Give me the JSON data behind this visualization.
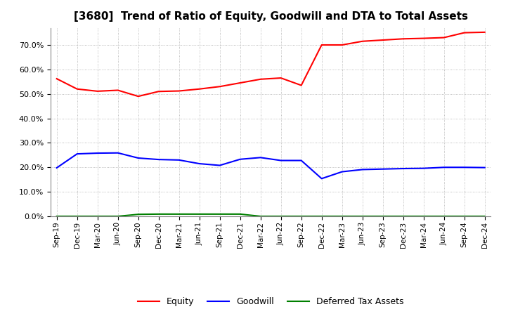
{
  "title": "[3680]  Trend of Ratio of Equity, Goodwill and DTA to Total Assets",
  "x_labels": [
    "Sep-19",
    "Dec-19",
    "Mar-20",
    "Jun-20",
    "Sep-20",
    "Dec-20",
    "Mar-21",
    "Jun-21",
    "Sep-21",
    "Dec-21",
    "Mar-22",
    "Jun-22",
    "Sep-22",
    "Dec-22",
    "Mar-23",
    "Jun-23",
    "Sep-23",
    "Dec-23",
    "Mar-24",
    "Jun-24",
    "Sep-24",
    "Dec-24"
  ],
  "equity": [
    0.562,
    0.52,
    0.511,
    0.515,
    0.49,
    0.51,
    0.512,
    0.52,
    0.53,
    0.545,
    0.56,
    0.565,
    0.535,
    0.7,
    0.7,
    0.715,
    0.72,
    0.725,
    0.727,
    0.73,
    0.75,
    0.752
  ],
  "goodwill": [
    0.198,
    0.255,
    0.258,
    0.259,
    0.238,
    0.232,
    0.23,
    0.215,
    0.208,
    0.233,
    0.24,
    0.228,
    0.228,
    0.154,
    0.182,
    0.191,
    0.193,
    0.195,
    0.196,
    0.2,
    0.2,
    0.199
  ],
  "dta": [
    0.0,
    0.0,
    0.0,
    0.0,
    0.008,
    0.009,
    0.009,
    0.009,
    0.009,
    0.009,
    0.0,
    0.0,
    0.0,
    0.0,
    0.0,
    0.0,
    0.0,
    0.0,
    0.0,
    0.0,
    0.0,
    0.0
  ],
  "equity_color": "#FF0000",
  "goodwill_color": "#0000FF",
  "dta_color": "#008000",
  "ylim": [
    0.0,
    0.77
  ],
  "yticks": [
    0.0,
    0.1,
    0.2,
    0.3,
    0.4,
    0.5,
    0.6,
    0.7
  ],
  "background_color": "#FFFFFF",
  "plot_bg_color": "#FFFFFF",
  "grid_color": "#AAAAAA",
  "title_fontsize": 11
}
